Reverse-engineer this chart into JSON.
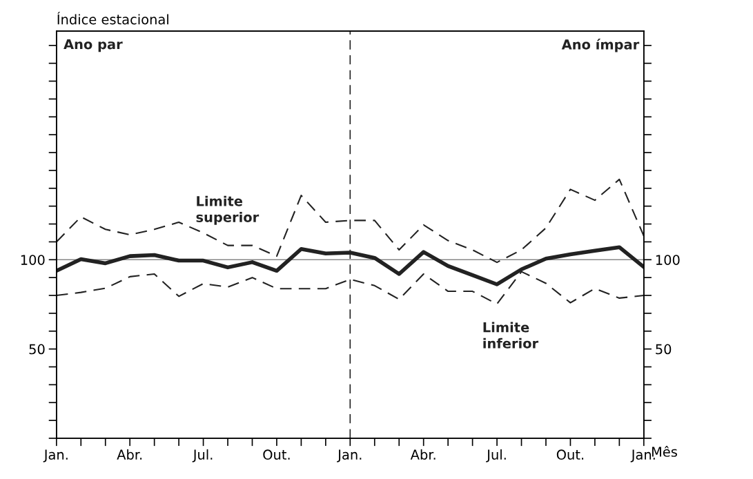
{
  "chart_data": {
    "type": "line",
    "ylabel": "Índice estacional",
    "xlabel": "Mês",
    "categories": [
      "Jan.",
      null,
      null,
      "Abr.",
      null,
      null,
      "Jul.",
      null,
      null,
      "Out.",
      null,
      null,
      "Jan.",
      null,
      null,
      "Abr.",
      null,
      null,
      "Jul.",
      null,
      null,
      "Out.",
      null,
      null,
      "Jan."
    ],
    "ylim": [
      0,
      228
    ],
    "yticks": [
      {
        "value": 0,
        "label": null
      },
      {
        "value": 10,
        "label": null
      },
      {
        "value": 20,
        "label": null
      },
      {
        "value": 30,
        "label": null
      },
      {
        "value": 40,
        "label": null
      },
      50,
      {
        "value": 60,
        "label": null
      },
      {
        "value": 70,
        "label": null
      },
      {
        "value": 80,
        "label": null
      },
      {
        "value": 90,
        "label": null
      },
      100,
      {
        "value": 110,
        "label": null
      },
      {
        "value": 120,
        "label": null
      },
      {
        "value": 130,
        "label": null
      },
      {
        "value": 140,
        "label": null
      },
      {
        "value": 150,
        "label": null
      },
      {
        "value": 160,
        "label": null
      },
      {
        "value": 170,
        "label": null
      },
      {
        "value": 180,
        "label": null
      },
      {
        "value": 190,
        "label": null
      },
      {
        "value": 200,
        "label": null
      },
      {
        "value": 210,
        "label": null
      },
      {
        "value": 220,
        "label": null
      }
    ],
    "y2lim": [
      0,
      228
    ],
    "y2ticks": [
      {
        "value": 0,
        "label": null
      },
      {
        "value": 10,
        "label": null
      },
      {
        "value": 20,
        "label": null
      },
      {
        "value": 30,
        "label": null
      },
      {
        "value": 40,
        "label": null
      },
      50,
      {
        "value": 60,
        "label": null
      },
      {
        "value": 70,
        "label": null
      },
      {
        "value": 80,
        "label": null
      },
      {
        "value": 90,
        "label": null
      },
      100,
      {
        "value": 110,
        "label": null
      },
      {
        "value": 120,
        "label": null
      },
      {
        "value": 130,
        "label": null
      },
      {
        "value": 140,
        "label": null
      },
      {
        "value": 150,
        "label": null
      },
      {
        "value": 160,
        "label": null
      },
      {
        "value": 170,
        "label": null
      },
      {
        "value": 180,
        "label": null
      },
      {
        "value": 190,
        "label": null
      },
      {
        "value": 200,
        "label": null
      },
      {
        "value": 210,
        "label": null
      },
      {
        "value": 220,
        "label": null
      }
    ],
    "series": [
      {
        "color": "#222222",
        "line_style": "solid",
        "values": [
          93.8,
          100.3,
          98,
          102,
          102.6,
          99.5,
          99.5,
          95.7,
          98.6,
          93.8,
          106,
          103.5,
          104,
          101,
          92,
          104.3,
          96.5,
          91.4,
          86.2,
          94.6,
          100.6,
          103,
          105,
          107,
          95.9
        ]
      },
      {
        "color": "#222222",
        "line_style": "dashed",
        "values": [
          110,
          124,
          117,
          114,
          117,
          121,
          115,
          108,
          108,
          102,
          136,
          121,
          122,
          122,
          105.5,
          119.5,
          110.7,
          105.5,
          98.5,
          105.5,
          117.8,
          139.4,
          133.3,
          145,
          113.3
        ]
      },
      {
        "color": "#222222",
        "line_style": "dashed",
        "values": [
          80,
          81.7,
          84,
          90.5,
          92,
          79.5,
          86.6,
          84.7,
          90,
          83.8,
          83.8,
          83.8,
          89,
          85.5,
          77.8,
          92,
          82.3,
          82.3,
          75.2,
          93.3,
          86.8,
          75.9,
          83.9,
          78.5,
          80
        ]
      }
    ],
    "ref_lines": [
      {
        "axis": "y",
        "value": 100,
        "color": "#888888",
        "line_style": "solid"
      }
    ],
    "annotations": [
      "Ano par",
      "Ano ímpar",
      "Limite\nsuperior",
      "Limite\ninferior"
    ],
    "grid": false,
    "legend": false,
    "marker": "none"
  }
}
